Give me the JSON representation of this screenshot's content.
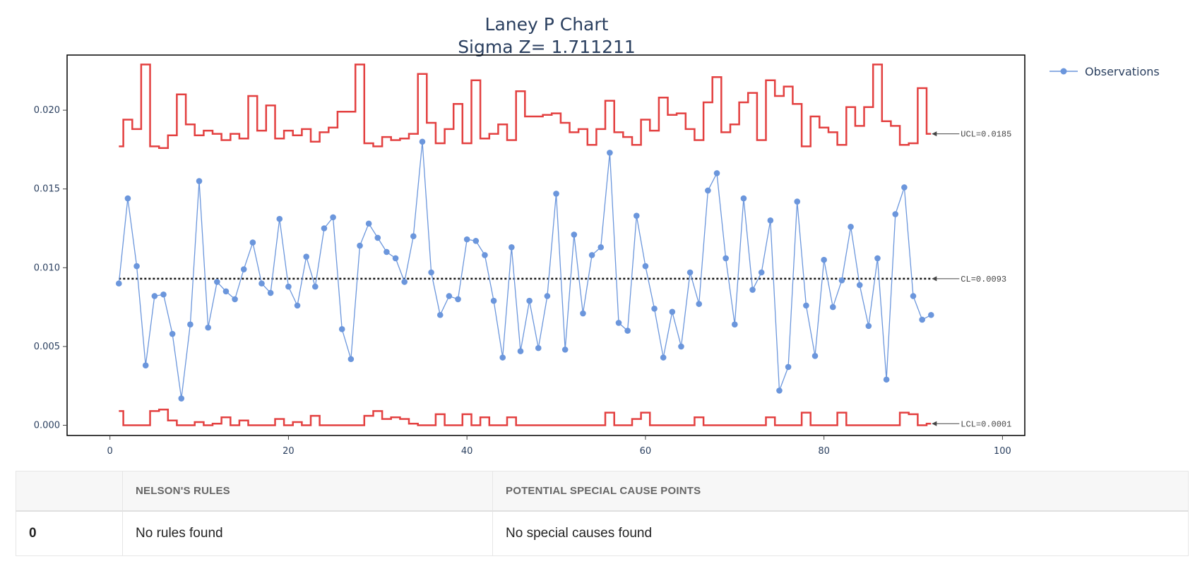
{
  "chart_data": {
    "type": "line",
    "title": "Laney P Chart",
    "subtitle": "Sigma Z= 1.711211",
    "xlabel": "",
    "ylabel": "",
    "xlim": [
      -4.8,
      102.5
    ],
    "ylim": [
      -0.00065,
      0.0235
    ],
    "xticks": [
      0,
      20,
      40,
      60,
      80,
      100
    ],
    "yticks": [
      0,
      0.005,
      0.01,
      0.015,
      0.02
    ],
    "ytick_labels": [
      "0.000",
      "0.005",
      "0.010",
      "0.015",
      "0.020"
    ],
    "grid": false,
    "legend_position": "top-right",
    "series": [
      {
        "name": "Observations",
        "color": "#6b96dc",
        "x": [
          1,
          2,
          3,
          4,
          5,
          6,
          7,
          8,
          9,
          10,
          11,
          12,
          13,
          14,
          15,
          16,
          17,
          18,
          19,
          20,
          21,
          22,
          23,
          24,
          25,
          26,
          27,
          28,
          29,
          30,
          31,
          32,
          33,
          34,
          35,
          36,
          37,
          38,
          39,
          40,
          41,
          42,
          43,
          44,
          45,
          46,
          47,
          48,
          49,
          50,
          51,
          52,
          53,
          54,
          55,
          56,
          57,
          58,
          59,
          60,
          61,
          62,
          63,
          64,
          65,
          66,
          67,
          68,
          69,
          70,
          71,
          72,
          73,
          74,
          75,
          76,
          77,
          78,
          79,
          80,
          81,
          82,
          83,
          84,
          85,
          86,
          87,
          88,
          89,
          90,
          91,
          92
        ],
        "y": [
          0.009,
          0.0144,
          0.0101,
          0.0038,
          0.0082,
          0.0083,
          0.0058,
          0.0017,
          0.0064,
          0.0155,
          0.0062,
          0.0091,
          0.0085,
          0.008,
          0.0099,
          0.0116,
          0.009,
          0.0084,
          0.0131,
          0.0088,
          0.0076,
          0.0107,
          0.0088,
          0.0125,
          0.0132,
          0.0061,
          0.0042,
          0.0114,
          0.0128,
          0.0119,
          0.011,
          0.0106,
          0.0091,
          0.012,
          0.018,
          0.0097,
          0.007,
          0.0082,
          0.008,
          0.0118,
          0.0117,
          0.0108,
          0.0079,
          0.0043,
          0.0113,
          0.0047,
          0.0079,
          0.0049,
          0.0082,
          0.0147,
          0.0048,
          0.0121,
          0.0071,
          0.0108,
          0.0113,
          0.0173,
          0.0065,
          0.006,
          0.0133,
          0.0101,
          0.0074,
          0.0043,
          0.0072,
          0.005,
          0.0097,
          0.0077,
          0.0149,
          0.016,
          0.0106,
          0.0064,
          0.0144,
          0.0086,
          0.0097,
          0.013,
          0.0022,
          0.0037,
          0.0142,
          0.0076,
          0.0044,
          0.0105,
          0.0075,
          0.0092,
          0.0126,
          0.0089,
          0.0063,
          0.0106,
          0.0029,
          0.0134,
          0.0151,
          0.0082,
          0.0067,
          0.007
        ]
      },
      {
        "name": "UCL",
        "color": "#e34040",
        "step": true,
        "x": [
          1,
          2,
          3,
          4,
          5,
          6,
          7,
          8,
          9,
          10,
          11,
          12,
          13,
          14,
          15,
          16,
          17,
          18,
          19,
          20,
          21,
          22,
          23,
          24,
          25,
          26,
          27,
          28,
          29,
          30,
          31,
          32,
          33,
          34,
          35,
          36,
          37,
          38,
          39,
          40,
          41,
          42,
          43,
          44,
          45,
          46,
          47,
          48,
          49,
          50,
          51,
          52,
          53,
          54,
          55,
          56,
          57,
          58,
          59,
          60,
          61,
          62,
          63,
          64,
          65,
          66,
          67,
          68,
          69,
          70,
          71,
          72,
          73,
          74,
          75,
          76,
          77,
          78,
          79,
          80,
          81,
          82,
          83,
          84,
          85,
          86,
          87,
          88,
          89,
          90,
          91,
          92
        ],
        "y": [
          0.0177,
          0.0194,
          0.0188,
          0.0229,
          0.0177,
          0.0176,
          0.0184,
          0.021,
          0.0191,
          0.0184,
          0.0187,
          0.0185,
          0.0181,
          0.0185,
          0.0182,
          0.0209,
          0.0187,
          0.0203,
          0.0182,
          0.0187,
          0.0184,
          0.0188,
          0.018,
          0.0186,
          0.0189,
          0.0199,
          0.0199,
          0.0229,
          0.0179,
          0.0177,
          0.0183,
          0.0181,
          0.0182,
          0.0185,
          0.0223,
          0.0192,
          0.0179,
          0.0188,
          0.0204,
          0.0179,
          0.0219,
          0.0182,
          0.0185,
          0.0191,
          0.0181,
          0.0212,
          0.0196,
          0.0196,
          0.0197,
          0.0198,
          0.0192,
          0.0186,
          0.0188,
          0.0178,
          0.0188,
          0.0206,
          0.0186,
          0.0183,
          0.0178,
          0.0194,
          0.0187,
          0.0208,
          0.0197,
          0.0198,
          0.0188,
          0.0181,
          0.0205,
          0.0221,
          0.0186,
          0.0191,
          0.0205,
          0.0211,
          0.0181,
          0.0219,
          0.0209,
          0.0215,
          0.0204,
          0.0177,
          0.0196,
          0.0189,
          0.0186,
          0.0178,
          0.0202,
          0.019,
          0.0202,
          0.0229,
          0.0193,
          0.019,
          0.0178,
          0.0179,
          0.0214,
          0.0185
        ]
      },
      {
        "name": "LCL",
        "color": "#e34040",
        "step": true,
        "x": [
          1,
          2,
          3,
          4,
          5,
          6,
          7,
          8,
          9,
          10,
          11,
          12,
          13,
          14,
          15,
          16,
          17,
          18,
          19,
          20,
          21,
          22,
          23,
          24,
          25,
          26,
          27,
          28,
          29,
          30,
          31,
          32,
          33,
          34,
          35,
          36,
          37,
          38,
          39,
          40,
          41,
          42,
          43,
          44,
          45,
          46,
          47,
          48,
          49,
          50,
          51,
          52,
          53,
          54,
          55,
          56,
          57,
          58,
          59,
          60,
          61,
          62,
          63,
          64,
          65,
          66,
          67,
          68,
          69,
          70,
          71,
          72,
          73,
          74,
          75,
          76,
          77,
          78,
          79,
          80,
          81,
          82,
          83,
          84,
          85,
          86,
          87,
          88,
          89,
          90,
          91,
          92
        ],
        "y": [
          0.0009,
          0.0,
          0.0,
          0.0,
          0.0009,
          0.001,
          0.0003,
          0.0,
          0.0,
          0.0002,
          0.0,
          0.0001,
          0.0005,
          0.0,
          0.0003,
          0.0,
          0.0,
          0.0,
          0.0004,
          0.0,
          0.0002,
          0.0,
          0.0006,
          0.0,
          0.0,
          0.0,
          0.0,
          0.0,
          0.0006,
          0.0009,
          0.0004,
          0.0005,
          0.0004,
          0.0001,
          0.0,
          0.0,
          0.0007,
          0.0,
          0.0,
          0.0007,
          0.0,
          0.0005,
          0.0,
          0.0,
          0.0005,
          0.0,
          0.0,
          0.0,
          0.0,
          0.0,
          0.0,
          0.0,
          0.0,
          0.0,
          0.0,
          0.0008,
          0.0,
          0.0,
          0.0004,
          0.0008,
          0.0,
          0.0,
          0.0,
          0.0,
          0.0,
          0.0005,
          0.0,
          0.0,
          0.0,
          0.0,
          0.0,
          0.0,
          0.0,
          0.0005,
          0.0,
          0.0,
          0.0,
          0.0008,
          0.0,
          0.0,
          0.0,
          0.0008,
          0.0,
          0.0,
          0.0,
          0.0,
          0.0,
          0.0,
          0.0008,
          0.0007,
          0.0,
          0.0001
        ]
      },
      {
        "name": "CL",
        "color": "#111111",
        "dashed": true,
        "x": [
          1,
          92
        ],
        "y": [
          0.0093,
          0.0093
        ]
      }
    ],
    "annotations": [
      {
        "text": "UCL=0.0185",
        "x": 92,
        "y": 0.0185
      },
      {
        "text": "CL=0.0093",
        "x": 92,
        "y": 0.0093
      },
      {
        "text": "LCL=0.0001",
        "x": 92,
        "y": 0.0001
      }
    ],
    "legend": [
      {
        "label": "Observations",
        "color": "#6b96dc"
      }
    ]
  },
  "table": {
    "headers": [
      "",
      "NELSON'S RULES",
      "POTENTIAL SPECIAL CAUSE POINTS"
    ],
    "rows": [
      {
        "index": "0",
        "rules": "No rules found",
        "causes": "No special causes found"
      }
    ]
  }
}
